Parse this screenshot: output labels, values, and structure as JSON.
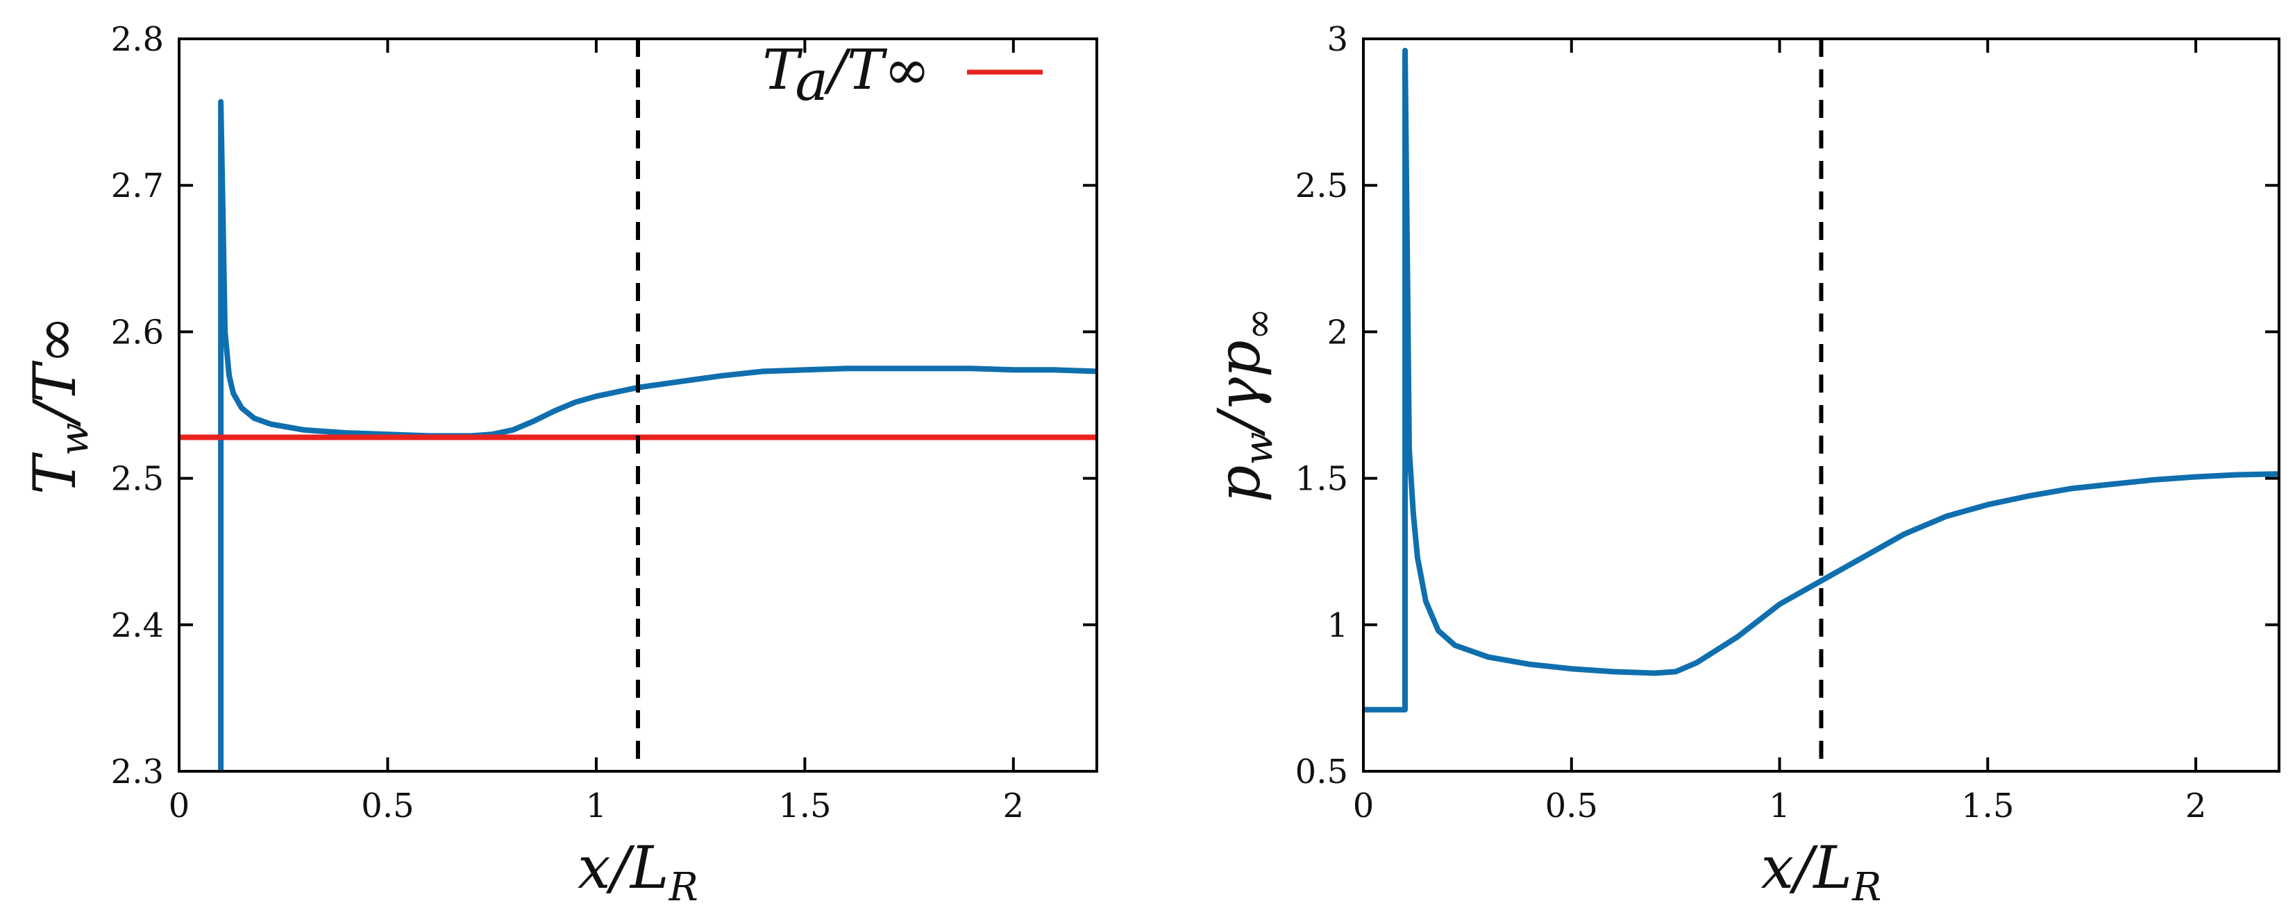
{
  "chart_data": [
    {
      "type": "line",
      "id": "left",
      "xlabel": {
        "main": "x/L",
        "sub": "R"
      },
      "ylabel": {
        "main": "T",
        "sub": "w",
        "rest": "/T∞"
      },
      "xlim": [
        0,
        2.2
      ],
      "ylim": [
        2.3,
        2.8
      ],
      "xticks": [
        0,
        0.5,
        1,
        1.5,
        2
      ],
      "xtick_labels": [
        "0",
        "0.5",
        "1",
        "1.5",
        "2"
      ],
      "yticks": [
        2.3,
        2.4,
        2.5,
        2.6,
        2.7,
        2.8
      ],
      "ytick_labels": [
        "2.3",
        "2.4",
        "2.5",
        "2.6",
        "2.7",
        "2.8"
      ],
      "vline": 1.1,
      "legend": {
        "label": "Ta/T∞",
        "label_main": "T",
        "label_sub": "a",
        "label_rest": "/T∞",
        "color": "#e8231f",
        "position": "top-right"
      },
      "series": [
        {
          "name": "Tw/T∞",
          "color": "#0f6fae",
          "x": [
            0.1,
            0.1,
            0.105,
            0.11,
            0.12,
            0.13,
            0.15,
            0.18,
            0.22,
            0.3,
            0.4,
            0.5,
            0.6,
            0.7,
            0.75,
            0.8,
            0.85,
            0.9,
            0.95,
            1.0,
            1.05,
            1.1,
            1.2,
            1.3,
            1.4,
            1.5,
            1.6,
            1.7,
            1.8,
            1.9,
            2.0,
            2.1,
            2.2
          ],
          "y": [
            2.3,
            2.757,
            2.68,
            2.6,
            2.57,
            2.558,
            2.548,
            2.541,
            2.537,
            2.533,
            2.531,
            2.53,
            2.529,
            2.529,
            2.53,
            2.533,
            2.539,
            2.546,
            2.552,
            2.556,
            2.559,
            2.562,
            2.566,
            2.57,
            2.573,
            2.574,
            2.575,
            2.575,
            2.575,
            2.575,
            2.574,
            2.574,
            2.573
          ]
        },
        {
          "name": "Ta/T∞",
          "color": "#e8231f",
          "x": [
            0,
            2.2
          ],
          "y": [
            2.528,
            2.528
          ]
        }
      ]
    },
    {
      "type": "line",
      "id": "right",
      "xlabel": {
        "main": "x/L",
        "sub": "R"
      },
      "ylabel": {
        "main": "p",
        "sub": "w",
        "rest": "/γp",
        "sub2": "∞"
      },
      "xlim": [
        0,
        2.2
      ],
      "ylim": [
        0.5,
        3
      ],
      "xticks": [
        0,
        0.5,
        1,
        1.5,
        2
      ],
      "xtick_labels": [
        "0",
        "0.5",
        "1",
        "1.5",
        "2"
      ],
      "yticks": [
        0.5,
        1,
        1.5,
        2,
        2.5,
        3
      ],
      "ytick_labels": [
        "0.5",
        "1",
        "1.5",
        "2",
        "2.5",
        "3"
      ],
      "vline": 1.1,
      "series": [
        {
          "name": "pw/γp∞",
          "color": "#0f6fae",
          "x": [
            0,
            0.1,
            0.1,
            0.105,
            0.11,
            0.12,
            0.13,
            0.15,
            0.18,
            0.22,
            0.3,
            0.4,
            0.5,
            0.6,
            0.7,
            0.75,
            0.8,
            0.9,
            1.0,
            1.1,
            1.2,
            1.3,
            1.4,
            1.5,
            1.6,
            1.7,
            1.8,
            1.9,
            2.0,
            2.1,
            2.2
          ],
          "y": [
            0.71,
            0.71,
            2.96,
            2.3,
            1.6,
            1.38,
            1.23,
            1.08,
            0.98,
            0.93,
            0.89,
            0.865,
            0.85,
            0.84,
            0.835,
            0.84,
            0.87,
            0.96,
            1.07,
            1.15,
            1.23,
            1.31,
            1.37,
            1.41,
            1.44,
            1.465,
            1.48,
            1.495,
            1.505,
            1.512,
            1.515
          ]
        }
      ]
    }
  ]
}
